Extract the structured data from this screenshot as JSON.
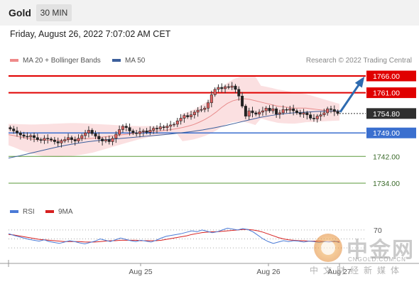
{
  "header": {
    "symbol": "Gold",
    "timeframe": "30 MIN",
    "datetime": "Friday, August 26, 2022 7:07:02 AM CET"
  },
  "legend": {
    "ma20_label": "MA 20 + Bollinger Bands",
    "ma50_label": "MA 50",
    "credit": "Research © 2022 Trading Central"
  },
  "colors": {
    "resistance": "#e00000",
    "support_key": "#3a6fcf",
    "support": "#5a9a3a",
    "ma20": "#e88c8c",
    "bands": "#f7c6c9",
    "ma50": "#3c5f9c",
    "candle_up": "#e06060",
    "rsi": "#4a7ad6",
    "rsi_ma": "#d62020",
    "arrow": "#2e6bb0"
  },
  "chart_data": [
    {
      "type": "candlestick",
      "title": "Gold 30 MIN",
      "x_labels": [
        "Aug 25",
        "Aug 26",
        "Aug 27"
      ],
      "ylim": [
        1730,
        1770
      ],
      "levels": [
        {
          "value": 1766.0,
          "label": "1766.00",
          "kind": "resistance"
        },
        {
          "value": 1761.0,
          "label": "1761.00",
          "kind": "resistance"
        },
        {
          "value": 1754.8,
          "label": "1754.80",
          "kind": "last_price"
        },
        {
          "value": 1749.0,
          "label": "1749.00",
          "kind": "pivot"
        },
        {
          "value": 1742.0,
          "label": "1742.00",
          "kind": "support"
        },
        {
          "value": 1734.0,
          "label": "1734.00",
          "kind": "support"
        }
      ],
      "close": [
        1750.2,
        1749.6,
        1749.0,
        1748.4,
        1748.0,
        1747.8,
        1748.2,
        1747.6,
        1747.0,
        1746.8,
        1747.4,
        1747.2,
        1746.9,
        1746.4,
        1746.0,
        1746.6,
        1747.0,
        1747.6,
        1747.0,
        1746.6,
        1747.4,
        1748.2,
        1749.0,
        1749.8,
        1748.8,
        1748.0,
        1747.2,
        1746.6,
        1747.0,
        1746.4,
        1747.4,
        1748.6,
        1750.0,
        1751.0,
        1750.6,
        1749.6,
        1749.0,
        1748.8,
        1749.4,
        1749.6,
        1749.2,
        1749.8,
        1750.4,
        1750.2,
        1750.8,
        1750.6,
        1751.0,
        1751.4,
        1751.6,
        1752.6,
        1753.4,
        1754.2,
        1753.8,
        1754.4,
        1755.2,
        1755.8,
        1756.0,
        1756.4,
        1758.0,
        1760.4,
        1762.0,
        1762.6,
        1762.2,
        1762.8,
        1762.6,
        1763.0,
        1762.0,
        1760.0,
        1757.0,
        1754.0,
        1755.6,
        1755.0,
        1754.6,
        1755.2,
        1755.6,
        1756.4,
        1755.6,
        1756.2,
        1754.6,
        1755.0,
        1756.0,
        1755.8,
        1756.2,
        1755.6,
        1755.0,
        1754.6,
        1755.0,
        1754.4,
        1753.4,
        1753.2,
        1754.0,
        1754.4,
        1755.0,
        1756.2,
        1756.0,
        1755.4,
        1754.8
      ],
      "series": [
        {
          "name": "MA 20",
          "values": [
            1748.5,
            1748.2,
            1747.8,
            1747.5,
            1747.2,
            1747.0,
            1746.9,
            1746.8,
            1746.8,
            1746.8,
            1746.9,
            1747.0,
            1747.1,
            1747.2,
            1747.3,
            1747.4,
            1747.6,
            1747.8,
            1748.0,
            1748.2,
            1748.4,
            1748.6,
            1748.8,
            1749.0,
            1749.2,
            1749.4,
            1749.5,
            1749.6,
            1749.8,
            1750.0,
            1750.3,
            1750.6,
            1751.0,
            1751.5,
            1752.2,
            1753.0,
            1754.0,
            1755.2,
            1756.6,
            1757.8,
            1758.6,
            1759.0,
            1759.2,
            1759.0,
            1758.6,
            1758.2,
            1757.8,
            1757.4,
            1757.0,
            1756.8,
            1756.6,
            1756.4,
            1756.4,
            1756.4,
            1756.2,
            1756.0,
            1755.8,
            1755.6,
            1755.4,
            1755.2
          ]
        },
        {
          "name": "MA 50",
          "values": [
            1741.5,
            1742.2,
            1743.0,
            1743.8,
            1744.6,
            1745.3,
            1745.9,
            1746.4,
            1746.8,
            1747.1,
            1747.4,
            1747.7,
            1748.0,
            1748.3,
            1748.6,
            1749.0,
            1749.4,
            1749.9,
            1750.5,
            1751.2,
            1752.0,
            1752.8,
            1753.6,
            1754.2,
            1754.7,
            1755.0,
            1755.2,
            1755.4,
            1755.5,
            1755.6
          ]
        }
      ]
    },
    {
      "type": "line",
      "title": "RSI",
      "ylabel": "",
      "ticks": [
        "70"
      ],
      "series": [
        {
          "name": "RSI",
          "values": [
            62,
            58,
            55,
            52,
            49,
            47,
            45,
            48,
            44,
            42,
            40,
            43,
            46,
            44,
            41,
            39,
            42,
            45,
            50,
            47,
            44,
            48,
            52,
            49,
            46,
            44,
            47,
            45,
            43,
            47,
            52,
            56,
            58,
            60,
            62,
            65,
            68,
            66,
            70,
            67,
            64,
            66,
            70,
            74,
            72,
            70,
            73,
            71,
            66,
            58,
            50,
            44,
            40,
            43,
            46,
            44,
            46,
            45,
            43,
            45,
            44,
            42,
            44,
            43,
            45,
            42
          ]
        },
        {
          "name": "9MA",
          "values": [
            60,
            59,
            57,
            55,
            53,
            51,
            49,
            48,
            47,
            46,
            45,
            44,
            44,
            44,
            44,
            43,
            43,
            43,
            44,
            45,
            46,
            46,
            47,
            47,
            47,
            47,
            46,
            46,
            46,
            46,
            47,
            49,
            51,
            53,
            55,
            57,
            60,
            62,
            64,
            65,
            66,
            66,
            67,
            68,
            69,
            70,
            71,
            71,
            70,
            68,
            65,
            61,
            57,
            53,
            50,
            48,
            47,
            46,
            46,
            45,
            45,
            45,
            44,
            44,
            44,
            44
          ]
        }
      ]
    }
  ],
  "rsi_legend": {
    "rsi_label": "RSI",
    "ma_label": "9MA"
  },
  "watermark": {
    "name": "中金网",
    "url": "CNGOLD.COM.CN",
    "tagline": "中文财经新媒体"
  }
}
